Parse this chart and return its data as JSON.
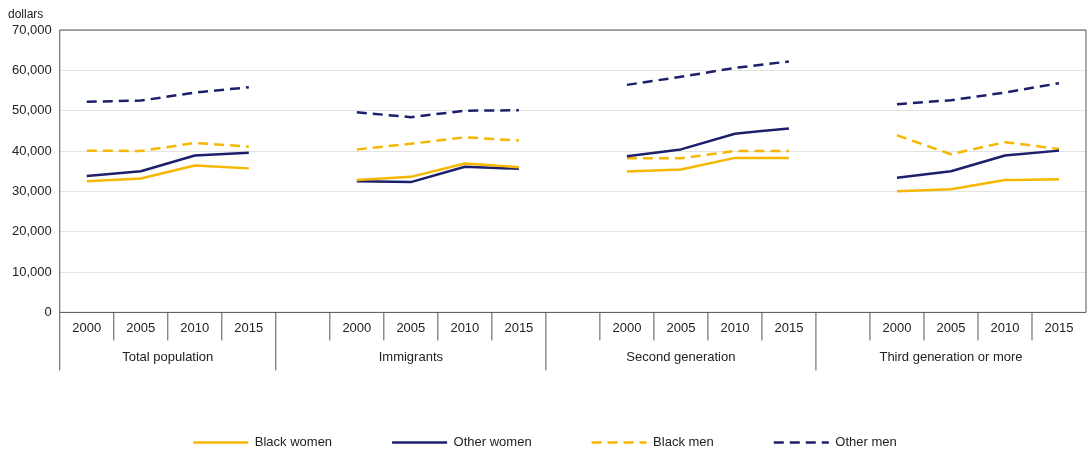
{
  "chart_data": {
    "type": "line",
    "ylabel": "dollars",
    "categories": [
      "2000",
      "2005",
      "2010",
      "2015",
      null,
      "2000",
      "2005",
      "2010",
      "2015",
      null,
      "2000",
      "2005",
      "2010",
      "2015",
      null,
      "2000",
      "2005",
      "2010",
      "2015"
    ],
    "series": [
      {
        "name": "Black women",
        "color": "#f5b700",
        "line_style": "solid",
        "values": [
          32500,
          33200,
          36400,
          35700,
          null,
          32800,
          33600,
          36900,
          36000,
          null,
          34900,
          35400,
          38300,
          38300,
          null,
          30000,
          30500,
          32800,
          33000
        ]
      },
      {
        "name": "Other women",
        "color": "#1c1f6b",
        "line_style": "solid",
        "values": [
          33800,
          35000,
          38900,
          39600,
          null,
          32500,
          32300,
          36100,
          35600,
          null,
          38700,
          40400,
          44300,
          45600,
          null,
          33400,
          35000,
          38900,
          40100
        ]
      },
      {
        "name": "Black men",
        "color": "#f5b700",
        "line_style": "dashed",
        "values": [
          40100,
          40000,
          42000,
          41100,
          null,
          40400,
          41800,
          43400,
          42600,
          null,
          38200,
          38200,
          40000,
          40000,
          null,
          43900,
          39200,
          42200,
          40500
        ]
      },
      {
        "name": "Other men",
        "color": "#1c1f6b",
        "line_style": "dashed",
        "values": [
          52200,
          52500,
          54500,
          55800,
          null,
          49600,
          48400,
          50000,
          50100,
          null,
          56400,
          58400,
          60600,
          62200,
          null,
          51600,
          52600,
          54500,
          56800
        ]
      }
    ],
    "annotations": [
      "Total population",
      "Immigrants",
      "Second generation",
      "Third generation or more"
    ],
    "ylim": [
      0,
      70000
    ],
    "yticks": [
      0,
      {
        "value": 10000,
        "label": "10,000"
      },
      {
        "value": 20000,
        "label": "20,000"
      },
      {
        "value": 30000,
        "label": "30,000"
      },
      {
        "value": 40000,
        "label": "40,000"
      },
      {
        "value": 50000,
        "label": "50,000"
      },
      {
        "value": 60000,
        "label": "60,000"
      },
      {
        "value": 70000,
        "label": "70,000"
      }
    ],
    "grid": "y",
    "legend": "bottom",
    "marker": "none"
  }
}
